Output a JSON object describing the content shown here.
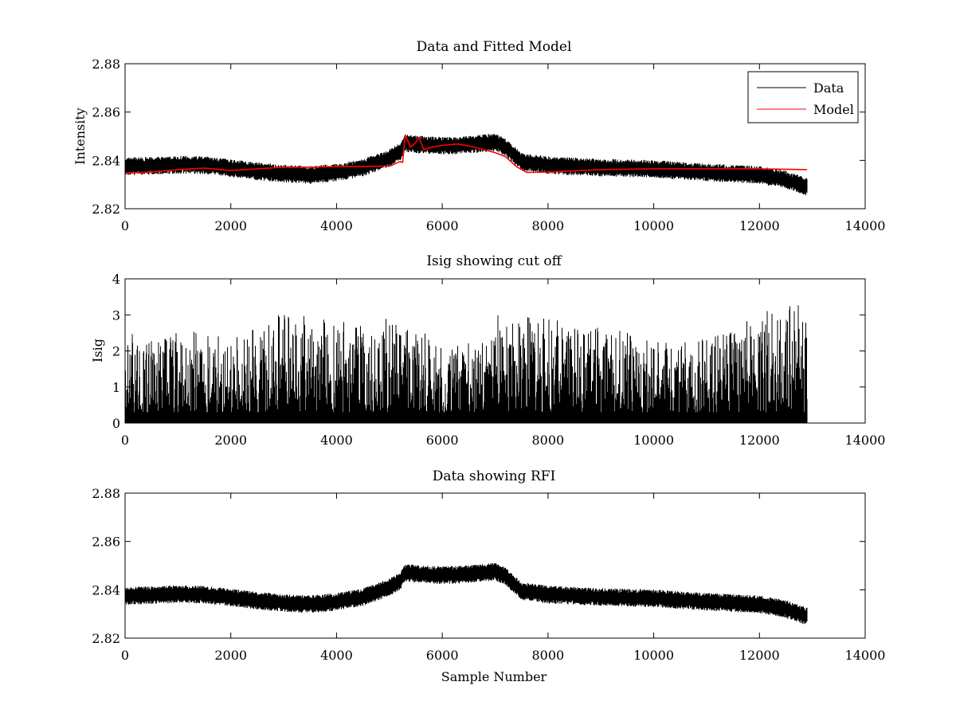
{
  "figure": {
    "background": "#ffffff"
  },
  "colors": {
    "data": "#000000",
    "model": "#ff0000"
  },
  "chart_data": [
    {
      "type": "line",
      "title": "Data and Fitted Model",
      "xlabel": "",
      "ylabel": "Intensity",
      "xlim": [
        0,
        14000
      ],
      "ylim": [
        2.82,
        2.88
      ],
      "xticks": [
        0,
        2000,
        4000,
        6000,
        8000,
        10000,
        12000,
        14000
      ],
      "yticks": [
        2.82,
        2.84,
        2.86,
        2.88
      ],
      "ytick_labels": [
        "2.82",
        "2.84",
        "2.86",
        "2.88"
      ],
      "legend": {
        "position": "top-right",
        "entries": [
          "Data",
          "Model"
        ]
      },
      "series": [
        {
          "name": "Data",
          "color": "#000000",
          "style": "noisy",
          "x_end": 12900,
          "baseline_x": [
            0,
            500,
            1000,
            1500,
            2000,
            2500,
            3000,
            3500,
            4000,
            4500,
            5000,
            5200,
            5300,
            5600,
            6000,
            6500,
            7000,
            7200,
            7500,
            8000,
            9000,
            10000,
            11000,
            12000,
            12500,
            12900
          ],
          "baseline_y": [
            2.8375,
            2.8378,
            2.8382,
            2.838,
            2.8368,
            2.8355,
            2.8345,
            2.834,
            2.835,
            2.837,
            2.841,
            2.8435,
            2.847,
            2.8465,
            2.846,
            2.8465,
            2.8475,
            2.8455,
            2.8395,
            2.838,
            2.837,
            2.8365,
            2.835,
            2.834,
            2.832,
            2.829
          ],
          "noise_amplitude": 0.0035
        },
        {
          "name": "Model",
          "color": "#ff0000",
          "style": "smooth",
          "x": [
            0,
            500,
            1000,
            1500,
            2000,
            2500,
            3000,
            3500,
            4000,
            4500,
            5000,
            5200,
            5250,
            5300,
            5400,
            5500,
            5560,
            5650,
            5800,
            6000,
            6300,
            6600,
            7000,
            7200,
            7400,
            7600,
            8000,
            9000,
            10000,
            11000,
            12000,
            12900
          ],
          "y": [
            2.8348,
            2.8352,
            2.8362,
            2.8368,
            2.8358,
            2.8365,
            2.8372,
            2.8372,
            2.8375,
            2.8375,
            2.8376,
            2.8395,
            2.8392,
            2.8505,
            2.8455,
            2.8475,
            2.8495,
            2.8445,
            2.8455,
            2.8462,
            2.8468,
            2.8455,
            2.8432,
            2.8415,
            2.8375,
            2.835,
            2.8352,
            2.8362,
            2.8365,
            2.8365,
            2.8365,
            2.8362
          ]
        }
      ]
    },
    {
      "type": "line",
      "title": "Isig showing cut off",
      "xlabel": "",
      "ylabel": "Isig",
      "xlim": [
        0,
        14000
      ],
      "ylim": [
        0,
        4
      ],
      "xticks": [
        0,
        2000,
        4000,
        6000,
        8000,
        10000,
        12000,
        14000
      ],
      "yticks": [
        0,
        1,
        2,
        3,
        4
      ],
      "ytick_labels": [
        "0",
        "1",
        "2",
        "3",
        "4"
      ],
      "series": [
        {
          "name": "Isig",
          "color": "#000000",
          "style": "spiky",
          "x_end": 12900,
          "envelope_x": [
            0,
            1000,
            2000,
            2500,
            3000,
            4000,
            5000,
            6000,
            6900,
            7000,
            8000,
            9000,
            10000,
            11000,
            11800,
            12400,
            12900
          ],
          "envelope_y": [
            2.1,
            2.4,
            2.1,
            2.6,
            3.0,
            2.6,
            2.8,
            2.0,
            1.9,
            2.9,
            2.7,
            2.4,
            2.2,
            2.2,
            2.6,
            3.0,
            3.4
          ]
        }
      ]
    },
    {
      "type": "line",
      "title": "Data showing RFI",
      "xlabel": "Sample Number",
      "ylabel": "",
      "xlim": [
        0,
        14000
      ],
      "ylim": [
        2.82,
        2.88
      ],
      "xticks": [
        0,
        2000,
        4000,
        6000,
        8000,
        10000,
        12000,
        14000
      ],
      "yticks": [
        2.82,
        2.84,
        2.86,
        2.88
      ],
      "ytick_labels": [
        "2.82",
        "2.84",
        "2.86",
        "2.88"
      ],
      "series": [
        {
          "name": "Data",
          "color": "#000000",
          "style": "noisy",
          "x_end": 12900,
          "baseline_x": [
            0,
            500,
            1000,
            1500,
            2000,
            2500,
            3000,
            3500,
            4000,
            4500,
            5000,
            5200,
            5300,
            5600,
            6000,
            6500,
            7000,
            7200,
            7500,
            8000,
            9000,
            10000,
            11000,
            12000,
            12500,
            12900
          ],
          "baseline_y": [
            2.8375,
            2.8378,
            2.8382,
            2.838,
            2.8368,
            2.8355,
            2.8345,
            2.834,
            2.835,
            2.837,
            2.841,
            2.8435,
            2.847,
            2.8465,
            2.846,
            2.8465,
            2.8475,
            2.8455,
            2.8395,
            2.838,
            2.837,
            2.8365,
            2.835,
            2.834,
            2.832,
            2.829
          ],
          "noise_amplitude": 0.0035
        }
      ]
    }
  ]
}
